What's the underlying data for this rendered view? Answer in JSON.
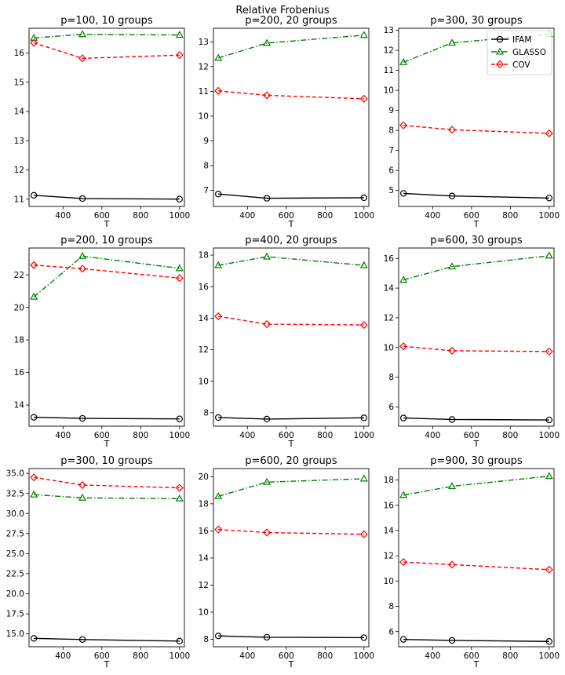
{
  "suptitle": "Relative Frobenius",
  "legend": {
    "placement": "top-right of top-right panel",
    "entries": [
      {
        "name": "IFAM",
        "color": "#000000",
        "marker": "circle",
        "dash": "solid"
      },
      {
        "name": "GLASSO",
        "color": "#008000",
        "marker": "triangle",
        "dash": "dashdot"
      },
      {
        "name": "COV",
        "color": "#ff0000",
        "marker": "diamond",
        "dash": "dashed"
      }
    ]
  },
  "chart_data": [
    {
      "type": "line",
      "title": "p=100, 10 groups",
      "xlabel": "T",
      "ylabel": "",
      "x": [
        250,
        500,
        1000
      ],
      "xlim": [
        225,
        1025
      ],
      "ylim": [
        10.75,
        16.85
      ],
      "xticks": [
        400,
        600,
        800,
        1000
      ],
      "yticks": [
        11,
        12,
        13,
        14,
        15,
        16
      ],
      "ytick_labels": [
        "11",
        "12",
        "13",
        "14",
        "15",
        "16"
      ],
      "series": [
        {
          "name": "IFAM",
          "values": [
            11.13,
            11.02,
            11.0
          ]
        },
        {
          "name": "GLASSO",
          "values": [
            16.52,
            16.64,
            16.62
          ]
        },
        {
          "name": "COV",
          "values": [
            16.35,
            15.82,
            15.93
          ]
        }
      ]
    },
    {
      "type": "line",
      "title": "p=200, 20 groups",
      "xlabel": "T",
      "ylabel": "",
      "x": [
        250,
        500,
        1000
      ],
      "xlim": [
        225,
        1025
      ],
      "ylim": [
        6.35,
        13.55
      ],
      "xticks": [
        400,
        600,
        800,
        1000
      ],
      "yticks": [
        7,
        8,
        9,
        10,
        11,
        12,
        13
      ],
      "ytick_labels": [
        "7",
        "8",
        "9",
        "10",
        "11",
        "12",
        "13"
      ],
      "series": [
        {
          "name": "IFAM",
          "values": [
            6.85,
            6.68,
            6.7
          ]
        },
        {
          "name": "GLASSO",
          "values": [
            12.35,
            12.95,
            13.27
          ]
        },
        {
          "name": "COV",
          "values": [
            11.02,
            10.84,
            10.7
          ]
        }
      ]
    },
    {
      "type": "line",
      "title": "p=300, 30 groups",
      "xlabel": "T",
      "ylabel": "",
      "x": [
        250,
        500,
        1000
      ],
      "xlim": [
        225,
        1025
      ],
      "ylim": [
        4.2,
        13.1
      ],
      "xticks": [
        400,
        600,
        800,
        1000
      ],
      "yticks": [
        5,
        6,
        7,
        8,
        9,
        10,
        11,
        12,
        13
      ],
      "ytick_labels": [
        "5",
        "6",
        "7",
        "8",
        "9",
        "10",
        "11",
        "12",
        "13"
      ],
      "series": [
        {
          "name": "IFAM",
          "values": [
            4.85,
            4.72,
            4.62
          ]
        },
        {
          "name": "GLASSO",
          "values": [
            11.4,
            12.37,
            12.8
          ]
        },
        {
          "name": "COV",
          "values": [
            8.25,
            8.03,
            7.85
          ]
        }
      ]
    },
    {
      "type": "line",
      "title": "p=200, 10 groups",
      "xlabel": "T",
      "ylabel": "",
      "x": [
        250,
        500,
        1000
      ],
      "xlim": [
        225,
        1025
      ],
      "ylim": [
        12.7,
        23.65
      ],
      "xticks": [
        400,
        600,
        800,
        1000
      ],
      "yticks": [
        14,
        16,
        18,
        20,
        22
      ],
      "ytick_labels": [
        "14",
        "16",
        "18",
        "20",
        "22"
      ],
      "series": [
        {
          "name": "IFAM",
          "values": [
            13.25,
            13.18,
            13.15
          ]
        },
        {
          "name": "GLASSO",
          "values": [
            20.65,
            23.15,
            22.4
          ]
        },
        {
          "name": "COV",
          "values": [
            22.6,
            22.38,
            21.8
          ]
        }
      ]
    },
    {
      "type": "line",
      "title": "p=400, 20 groups",
      "xlabel": "T",
      "ylabel": "",
      "x": [
        250,
        500,
        1000
      ],
      "xlim": [
        225,
        1025
      ],
      "ylim": [
        7.15,
        18.45
      ],
      "xticks": [
        400,
        600,
        800,
        1000
      ],
      "yticks": [
        8,
        10,
        12,
        14,
        16,
        18
      ],
      "ytick_labels": [
        "8",
        "10",
        "12",
        "14",
        "16",
        "18"
      ],
      "series": [
        {
          "name": "IFAM",
          "values": [
            7.7,
            7.6,
            7.68
          ]
        },
        {
          "name": "GLASSO",
          "values": [
            17.35,
            17.9,
            17.35
          ]
        },
        {
          "name": "COV",
          "values": [
            14.12,
            13.62,
            13.57
          ]
        }
      ]
    },
    {
      "type": "line",
      "title": "p=600, 30 groups",
      "xlabel": "T",
      "ylabel": "",
      "x": [
        250,
        500,
        1000
      ],
      "xlim": [
        225,
        1025
      ],
      "ylim": [
        4.7,
        16.7
      ],
      "xticks": [
        400,
        600,
        800,
        1000
      ],
      "yticks": [
        6,
        8,
        10,
        12,
        14,
        16
      ],
      "ytick_labels": [
        "6",
        "8",
        "10",
        "12",
        "14",
        "16"
      ],
      "series": [
        {
          "name": "IFAM",
          "values": [
            5.25,
            5.15,
            5.12
          ]
        },
        {
          "name": "GLASSO",
          "values": [
            14.55,
            15.45,
            16.18
          ]
        },
        {
          "name": "COV",
          "values": [
            10.08,
            9.78,
            9.73
          ]
        }
      ]
    },
    {
      "type": "line",
      "title": "p=300, 10 groups",
      "xlabel": "T",
      "ylabel": "",
      "x": [
        250,
        500,
        1000
      ],
      "xlim": [
        225,
        1025
      ],
      "ylim": [
        13.4,
        35.6
      ],
      "xticks": [
        400,
        600,
        800,
        1000
      ],
      "yticks": [
        15.0,
        17.5,
        20.0,
        22.5,
        25.0,
        27.5,
        30.0,
        32.5,
        35.0
      ],
      "ytick_labels": [
        "15.0",
        "17.5",
        "20.0",
        "22.5",
        "25.0",
        "27.5",
        "30.0",
        "32.5",
        "35.0"
      ],
      "series": [
        {
          "name": "IFAM",
          "values": [
            14.45,
            14.3,
            14.1
          ]
        },
        {
          "name": "GLASSO",
          "values": [
            32.35,
            31.95,
            31.85
          ]
        },
        {
          "name": "COV",
          "values": [
            34.5,
            33.55,
            33.2
          ]
        }
      ]
    },
    {
      "type": "line",
      "title": "p=600, 20 groups",
      "xlabel": "T",
      "ylabel": "",
      "x": [
        250,
        500,
        1000
      ],
      "xlim": [
        225,
        1025
      ],
      "ylim": [
        7.45,
        20.6
      ],
      "xticks": [
        400,
        600,
        800,
        1000
      ],
      "yticks": [
        8,
        10,
        12,
        14,
        16,
        18,
        20
      ],
      "ytick_labels": [
        "8",
        "10",
        "12",
        "14",
        "16",
        "18",
        "20"
      ],
      "series": [
        {
          "name": "IFAM",
          "values": [
            8.25,
            8.15,
            8.12
          ]
        },
        {
          "name": "GLASSO",
          "values": [
            18.55,
            19.6,
            19.85
          ]
        },
        {
          "name": "COV",
          "values": [
            16.1,
            15.88,
            15.75
          ]
        }
      ]
    },
    {
      "type": "line",
      "title": "p=900, 30 groups",
      "xlabel": "T",
      "ylabel": "",
      "x": [
        250,
        500,
        1000
      ],
      "xlim": [
        225,
        1025
      ],
      "ylim": [
        4.8,
        18.9
      ],
      "xticks": [
        400,
        600,
        800,
        1000
      ],
      "yticks": [
        6,
        8,
        10,
        12,
        14,
        16,
        18
      ],
      "ytick_labels": [
        "6",
        "8",
        "10",
        "12",
        "14",
        "16",
        "18"
      ],
      "series": [
        {
          "name": "IFAM",
          "values": [
            5.38,
            5.3,
            5.22
          ]
        },
        {
          "name": "GLASSO",
          "values": [
            16.8,
            17.5,
            18.3
          ]
        },
        {
          "name": "COV",
          "values": [
            11.5,
            11.3,
            10.9
          ]
        }
      ]
    }
  ]
}
